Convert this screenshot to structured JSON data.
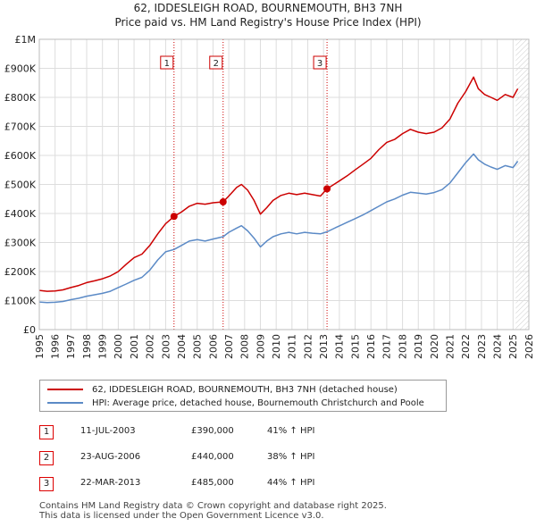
{
  "header": {
    "title": "62, IDDESLEIGH ROAD, BOURNEMOUTH, BH3 7NH",
    "subtitle": "Price paid vs. HM Land Registry's House Price Index (HPI)"
  },
  "colors": {
    "property": "#cc0000",
    "hpi": "#5b8ac6",
    "marker_line": "#cc0000",
    "grid": "#dddddd",
    "hatch": "#cccccc"
  },
  "chart_data": {
    "type": "line",
    "title": "62, IDDESLEIGH ROAD, BOURNEMOUTH, BH3 7NH",
    "subtitle": "Price paid vs. HM Land Registry's House Price Index (HPI)",
    "xlabel": "",
    "ylabel": "",
    "xlim": [
      1995,
      2026
    ],
    "ylim": [
      0,
      1000000
    ],
    "y_ticks": [
      0,
      100000,
      200000,
      300000,
      400000,
      500000,
      600000,
      700000,
      800000,
      900000,
      1000000
    ],
    "y_tick_labels": [
      "£0",
      "£100K",
      "£200K",
      "£300K",
      "£400K",
      "£500K",
      "£600K",
      "£700K",
      "£800K",
      "£900K",
      "£1M"
    ],
    "x_ticks": [
      1995,
      1996,
      1997,
      1998,
      1999,
      2000,
      2001,
      2002,
      2003,
      2004,
      2005,
      2006,
      2007,
      2008,
      2009,
      2010,
      2011,
      2012,
      2013,
      2014,
      2015,
      2016,
      2017,
      2018,
      2019,
      2020,
      2021,
      2022,
      2023,
      2024,
      2025,
      2026
    ],
    "x_tick_labels": [
      "1995",
      "1996",
      "1997",
      "1998",
      "1999",
      "2000",
      "2001",
      "2002",
      "2003",
      "2004",
      "2005",
      "2006",
      "2007",
      "2008",
      "2009",
      "2010",
      "2011",
      "2012",
      "2013",
      "2014",
      "2015",
      "2016",
      "2017",
      "2018",
      "2019",
      "2020",
      "2021",
      "2022",
      "2023",
      "2024",
      "2025",
      "2026"
    ],
    "grid": true,
    "future_shading_from": 2025.17,
    "series": [
      {
        "name": "62, IDDESLEIGH ROAD, BOURNEMOUTH, BH3 7NH (detached house)",
        "color": "#cc0000",
        "points": [
          [
            1995.0,
            135000
          ],
          [
            1995.5,
            132000
          ],
          [
            1996.0,
            133000
          ],
          [
            1996.5,
            137000
          ],
          [
            1997.0,
            145000
          ],
          [
            1997.5,
            152000
          ],
          [
            1998.0,
            162000
          ],
          [
            1998.5,
            168000
          ],
          [
            1999.0,
            175000
          ],
          [
            1999.5,
            185000
          ],
          [
            2000.0,
            200000
          ],
          [
            2000.5,
            225000
          ],
          [
            2001.0,
            248000
          ],
          [
            2001.5,
            260000
          ],
          [
            2002.0,
            290000
          ],
          [
            2002.5,
            330000
          ],
          [
            2003.0,
            365000
          ],
          [
            2003.53,
            390000
          ],
          [
            2004.0,
            405000
          ],
          [
            2004.5,
            425000
          ],
          [
            2005.0,
            435000
          ],
          [
            2005.5,
            432000
          ],
          [
            2006.0,
            437000
          ],
          [
            2006.64,
            440000
          ],
          [
            2007.0,
            460000
          ],
          [
            2007.5,
            490000
          ],
          [
            2007.8,
            500000
          ],
          [
            2008.2,
            480000
          ],
          [
            2008.6,
            445000
          ],
          [
            2009.0,
            398000
          ],
          [
            2009.4,
            420000
          ],
          [
            2009.8,
            445000
          ],
          [
            2010.3,
            462000
          ],
          [
            2010.8,
            470000
          ],
          [
            2011.3,
            465000
          ],
          [
            2011.8,
            470000
          ],
          [
            2012.3,
            465000
          ],
          [
            2012.8,
            460000
          ],
          [
            2013.22,
            485000
          ],
          [
            2013.8,
            505000
          ],
          [
            2014.5,
            530000
          ],
          [
            2015.0,
            550000
          ],
          [
            2015.5,
            570000
          ],
          [
            2016.0,
            590000
          ],
          [
            2016.5,
            620000
          ],
          [
            2017.0,
            645000
          ],
          [
            2017.5,
            655000
          ],
          [
            2018.0,
            675000
          ],
          [
            2018.5,
            690000
          ],
          [
            2019.0,
            680000
          ],
          [
            2019.5,
            675000
          ],
          [
            2020.0,
            680000
          ],
          [
            2020.5,
            695000
          ],
          [
            2021.0,
            725000
          ],
          [
            2021.5,
            780000
          ],
          [
            2022.0,
            820000
          ],
          [
            2022.5,
            870000
          ],
          [
            2022.8,
            830000
          ],
          [
            2023.2,
            810000
          ],
          [
            2023.6,
            800000
          ],
          [
            2024.0,
            790000
          ],
          [
            2024.5,
            810000
          ],
          [
            2025.0,
            800000
          ],
          [
            2025.3,
            830000
          ]
        ]
      },
      {
        "name": "HPI: Average price, detached house, Bournemouth Christchurch and Poole",
        "color": "#5b8ac6",
        "points": [
          [
            1995.0,
            95000
          ],
          [
            1995.5,
            93000
          ],
          [
            1996.0,
            94000
          ],
          [
            1996.5,
            97000
          ],
          [
            1997.0,
            103000
          ],
          [
            1997.5,
            108000
          ],
          [
            1998.0,
            115000
          ],
          [
            1998.5,
            120000
          ],
          [
            1999.0,
            125000
          ],
          [
            1999.5,
            132000
          ],
          [
            2000.0,
            145000
          ],
          [
            2000.5,
            157000
          ],
          [
            2001.0,
            170000
          ],
          [
            2001.5,
            180000
          ],
          [
            2002.0,
            205000
          ],
          [
            2002.5,
            240000
          ],
          [
            2003.0,
            268000
          ],
          [
            2003.53,
            276000
          ],
          [
            2004.0,
            290000
          ],
          [
            2004.5,
            305000
          ],
          [
            2005.0,
            310000
          ],
          [
            2005.5,
            305000
          ],
          [
            2006.0,
            312000
          ],
          [
            2006.64,
            320000
          ],
          [
            2007.0,
            335000
          ],
          [
            2007.5,
            350000
          ],
          [
            2007.8,
            358000
          ],
          [
            2008.2,
            340000
          ],
          [
            2008.6,
            315000
          ],
          [
            2009.0,
            285000
          ],
          [
            2009.4,
            305000
          ],
          [
            2009.8,
            320000
          ],
          [
            2010.3,
            330000
          ],
          [
            2010.8,
            335000
          ],
          [
            2011.3,
            330000
          ],
          [
            2011.8,
            335000
          ],
          [
            2012.3,
            332000
          ],
          [
            2012.8,
            330000
          ],
          [
            2013.22,
            337000
          ],
          [
            2013.8,
            352000
          ],
          [
            2014.5,
            370000
          ],
          [
            2015.0,
            382000
          ],
          [
            2015.5,
            395000
          ],
          [
            2016.0,
            410000
          ],
          [
            2016.5,
            425000
          ],
          [
            2017.0,
            440000
          ],
          [
            2017.5,
            450000
          ],
          [
            2018.0,
            463000
          ],
          [
            2018.5,
            473000
          ],
          [
            2019.0,
            470000
          ],
          [
            2019.5,
            467000
          ],
          [
            2020.0,
            472000
          ],
          [
            2020.5,
            482000
          ],
          [
            2021.0,
            505000
          ],
          [
            2021.5,
            540000
          ],
          [
            2022.0,
            575000
          ],
          [
            2022.5,
            605000
          ],
          [
            2022.8,
            585000
          ],
          [
            2023.2,
            570000
          ],
          [
            2023.6,
            560000
          ],
          [
            2024.0,
            552000
          ],
          [
            2024.5,
            565000
          ],
          [
            2025.0,
            558000
          ],
          [
            2025.3,
            580000
          ]
        ]
      }
    ],
    "sales": [
      {
        "id": "1",
        "x": 2003.53,
        "value": 390000,
        "date": "11-JUL-2003",
        "price": "£390,000",
        "hpi": "41% ↑ HPI"
      },
      {
        "id": "2",
        "x": 2006.64,
        "value": 440000,
        "date": "23-AUG-2006",
        "price": "£440,000",
        "hpi": "38% ↑ HPI"
      },
      {
        "id": "3",
        "x": 2013.22,
        "value": 485000,
        "date": "22-MAR-2013",
        "price": "£485,000",
        "hpi": "44% ↑ HPI"
      }
    ]
  },
  "legend": {
    "property_label": "62, IDDESLEIGH ROAD, BOURNEMOUTH, BH3 7NH (detached house)",
    "hpi_label": "HPI: Average price, detached house, Bournemouth Christchurch and Poole"
  },
  "footer": {
    "line1": "Contains HM Land Registry data © Crown copyright and database right 2025.",
    "line2": "This data is licensed under the Open Government Licence v3.0."
  }
}
